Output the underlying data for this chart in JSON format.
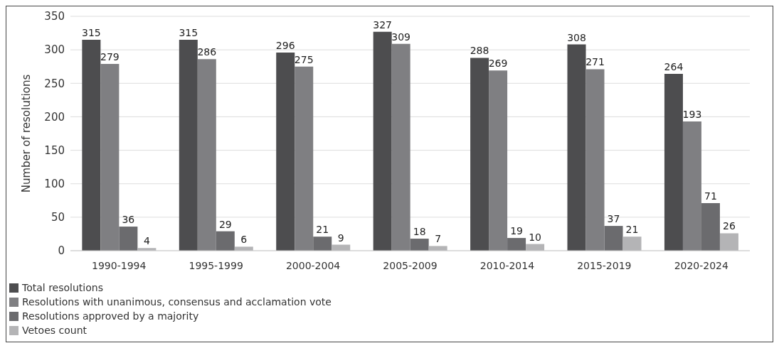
{
  "chart_data": {
    "type": "bar",
    "ylabel": "Number of resolutions",
    "categories": [
      "1990-1994",
      "1995-1999",
      "2000-2004",
      "2005-2009",
      "2010-2014",
      "2015-2019",
      "2020-2024"
    ],
    "series": [
      {
        "name": "Total resolutions",
        "color": "#4d4d4f",
        "values": [
          315,
          315,
          296,
          327,
          288,
          308,
          264
        ]
      },
      {
        "name": "Resolutions with unanimous, consensus and acclamation vote",
        "color": "#7f7f82",
        "values": [
          279,
          286,
          275,
          309,
          269,
          271,
          193
        ]
      },
      {
        "name": "Resolutions approved by a majority",
        "color": "#6b6b6e",
        "values": [
          36,
          29,
          21,
          18,
          19,
          37,
          71
        ]
      },
      {
        "name": "Vetoes count",
        "color": "#b4b4b6",
        "values": [
          4,
          6,
          9,
          7,
          10,
          21,
          26
        ]
      }
    ],
    "ylim": [
      0,
      350
    ],
    "yticks": [
      0,
      50,
      100,
      150,
      200,
      250,
      300,
      350
    ],
    "grid": "y",
    "legend": "bottom left",
    "data_labels": true
  }
}
